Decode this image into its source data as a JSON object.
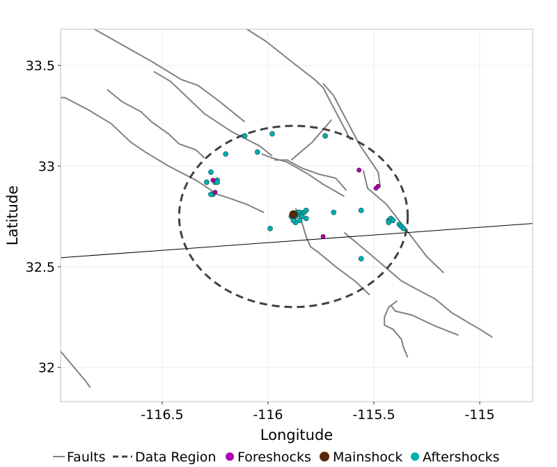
{
  "colors": {
    "fault": "#808080",
    "border": "#000000",
    "region": "#404040",
    "foreshock": "#b000b0",
    "mainshock": "#5a2a08",
    "aftershock": "#00b0b0",
    "grid": "#ebebeb"
  },
  "chart_data": {
    "type": "scatter",
    "xlabel": "Longitude",
    "ylabel": "Latitude",
    "xlim": [
      -116.98,
      -114.75
    ],
    "ylim": [
      31.83,
      33.68
    ],
    "xticks": [
      -116.5,
      -116,
      -115.5,
      -115
    ],
    "xtick_labels": [
      "-116.5",
      "-116",
      "-115.5",
      "-115"
    ],
    "yticks": [
      32,
      32.5,
      33,
      33.5
    ],
    "ytick_labels": [
      "32",
      "32.5",
      "33",
      "33.5"
    ],
    "grid": true,
    "legend_position": "bottom",
    "legend": [
      {
        "key": "faults",
        "label": "Faults"
      },
      {
        "key": "region",
        "label": "Data Region"
      },
      {
        "key": "foreshocks",
        "label": "Foreshocks"
      },
      {
        "key": "mainshock",
        "label": "Mainshock"
      },
      {
        "key": "aftershocks",
        "label": "Aftershocks"
      }
    ],
    "data_region": {
      "center": [
        -115.88,
        32.75
      ],
      "radius_lon": 0.54,
      "radius_lat": 0.45
    },
    "border_line": [
      [
        -116.98,
        32.545
      ],
      [
        -114.75,
        32.715
      ]
    ],
    "faults": [
      [
        [
          -116.82,
          33.68
        ],
        [
          -116.55,
          33.52
        ],
        [
          -116.41,
          33.43
        ],
        [
          -116.33,
          33.4
        ],
        [
          -116.24,
          33.33
        ],
        [
          -116.11,
          33.22
        ]
      ],
      [
        [
          -116.76,
          33.38
        ],
        [
          -116.69,
          33.32
        ],
        [
          -116.6,
          33.27
        ],
        [
          -116.55,
          33.22
        ],
        [
          -116.47,
          33.16
        ],
        [
          -116.42,
          33.11
        ],
        [
          -116.34,
          33.08
        ],
        [
          -116.3,
          33.04
        ]
      ],
      [
        [
          -116.54,
          33.47
        ],
        [
          -116.46,
          33.42
        ],
        [
          -116.39,
          33.35
        ],
        [
          -116.3,
          33.26
        ],
        [
          -116.17,
          33.17
        ],
        [
          -116.04,
          33.1
        ],
        [
          -115.98,
          33.05
        ]
      ],
      [
        [
          -116.98,
          33.34
        ],
        [
          -116.96,
          33.34
        ],
        [
          -116.85,
          33.28
        ],
        [
          -116.74,
          33.21
        ],
        [
          -116.65,
          33.12
        ],
        [
          -116.58,
          33.07
        ],
        [
          -116.47,
          33.0
        ],
        [
          -116.34,
          32.93
        ],
        [
          -116.24,
          32.86
        ],
        [
          -116.18,
          32.84
        ],
        [
          -116.1,
          32.81
        ],
        [
          -116.02,
          32.77
        ]
      ],
      [
        [
          -116.1,
          33.68
        ],
        [
          -116.01,
          33.62
        ],
        [
          -115.89,
          33.52
        ],
        [
          -115.78,
          33.43
        ],
        [
          -115.74,
          33.39
        ],
        [
          -115.61,
          33.13
        ]
      ],
      [
        [
          -116.03,
          33.06
        ],
        [
          -115.98,
          33.04
        ],
        [
          -115.91,
          33.02
        ],
        [
          -115.81,
          32.96
        ],
        [
          -115.74,
          32.91
        ],
        [
          -115.64,
          32.85
        ]
      ],
      [
        [
          -115.97,
          33.03
        ],
        [
          -115.91,
          33.03
        ],
        [
          -115.84,
          32.99
        ],
        [
          -115.76,
          32.96
        ],
        [
          -115.68,
          32.94
        ],
        [
          -115.63,
          32.88
        ]
      ],
      [
        [
          -115.89,
          33.03
        ],
        [
          -115.79,
          33.12
        ],
        [
          -115.7,
          33.23
        ]
      ],
      [
        [
          -115.74,
          33.41
        ],
        [
          -115.69,
          33.35
        ],
        [
          -115.57,
          33.11
        ],
        [
          -115.48,
          32.97
        ],
        [
          -115.47,
          32.9
        ]
      ],
      [
        [
          -115.55,
          32.98
        ],
        [
          -115.53,
          32.89
        ],
        [
          -115.44,
          32.81
        ],
        [
          -115.33,
          32.66
        ],
        [
          -115.25,
          32.55
        ],
        [
          -115.17,
          32.47
        ]
      ],
      [
        [
          -115.87,
          32.79
        ],
        [
          -115.84,
          32.72
        ],
        [
          -115.82,
          32.65
        ],
        [
          -115.8,
          32.6
        ],
        [
          -115.76,
          32.57
        ],
        [
          -115.68,
          32.5
        ],
        [
          -115.59,
          32.43
        ],
        [
          -115.52,
          32.36
        ]
      ],
      [
        [
          -115.64,
          32.67
        ],
        [
          -115.56,
          32.6
        ],
        [
          -115.47,
          32.52
        ],
        [
          -115.37,
          32.43
        ],
        [
          -115.3,
          32.39
        ],
        [
          -115.21,
          32.34
        ],
        [
          -115.13,
          32.27
        ],
        [
          -115.0,
          32.19
        ],
        [
          -114.94,
          32.15
        ]
      ],
      [
        [
          -115.42,
          32.31
        ],
        [
          -115.4,
          32.28
        ],
        [
          -115.32,
          32.26
        ],
        [
          -115.22,
          32.21
        ],
        [
          -115.1,
          32.16
        ]
      ],
      [
        [
          -115.39,
          32.33
        ],
        [
          -115.43,
          32.3
        ],
        [
          -115.45,
          32.25
        ],
        [
          -115.45,
          32.21
        ],
        [
          -115.41,
          32.19
        ],
        [
          -115.37,
          32.14
        ],
        [
          -115.36,
          32.1
        ],
        [
          -115.34,
          32.05
        ]
      ],
      [
        [
          -116.98,
          32.08
        ],
        [
          -116.94,
          32.03
        ],
        [
          -116.9,
          31.98
        ],
        [
          -116.86,
          31.93
        ],
        [
          -116.84,
          31.9
        ]
      ]
    ],
    "foreshocks": [
      [
        -116.26,
        32.93
      ],
      [
        -116.25,
        32.87
      ],
      [
        -115.57,
        32.98
      ],
      [
        -115.48,
        32.9
      ],
      [
        -115.49,
        32.89
      ],
      [
        -115.74,
        32.65
      ]
    ],
    "mainshock": [
      [
        -115.88,
        32.76
      ]
    ],
    "aftershocks": [
      [
        -116.11,
        33.15
      ],
      [
        -115.98,
        33.16
      ],
      [
        -116.05,
        33.07
      ],
      [
        -116.2,
        33.06
      ],
      [
        -115.73,
        33.15
      ],
      [
        -116.27,
        32.97
      ],
      [
        -116.24,
        32.93
      ],
      [
        -116.25,
        32.92
      ],
      [
        -116.24,
        32.92
      ],
      [
        -116.29,
        32.92
      ],
      [
        -116.26,
        32.86
      ],
      [
        -116.27,
        32.86
      ],
      [
        -115.99,
        32.69
      ],
      [
        -115.69,
        32.77
      ],
      [
        -115.56,
        32.78
      ],
      [
        -115.56,
        32.54
      ],
      [
        -115.88,
        32.74
      ],
      [
        -115.87,
        32.75
      ],
      [
        -115.86,
        32.76
      ],
      [
        -115.86,
        32.77
      ],
      [
        -115.85,
        32.77
      ],
      [
        -115.84,
        32.76
      ],
      [
        -115.83,
        32.77
      ],
      [
        -115.82,
        32.78
      ],
      [
        -115.85,
        32.73
      ],
      [
        -115.87,
        32.72
      ],
      [
        -115.82,
        32.74
      ],
      [
        -115.84,
        32.75
      ],
      [
        -115.88,
        32.73
      ],
      [
        -115.89,
        32.75
      ],
      [
        -115.43,
        32.73
      ],
      [
        -115.42,
        32.74
      ],
      [
        -115.43,
        32.72
      ],
      [
        -115.41,
        32.73
      ],
      [
        -115.38,
        32.71
      ],
      [
        -115.37,
        32.7
      ],
      [
        -115.36,
        32.69
      ]
    ]
  }
}
